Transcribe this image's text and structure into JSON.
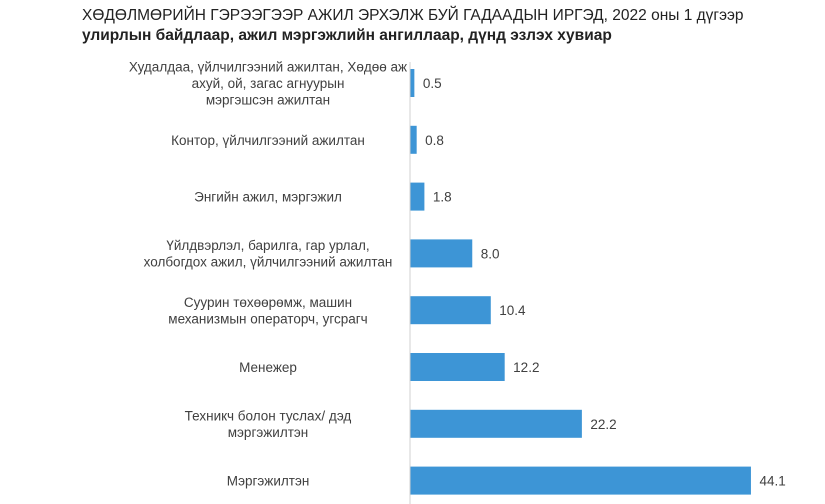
{
  "chart_data": {
    "type": "bar",
    "orientation": "horizontal",
    "title": "ХӨДӨЛМӨРИЙН ГЭРЭЭГЭЭР АЖИЛ ЭРХЭЛЖ БУЙ ГАДААДЫН ИРГЭД, 2022 оны 1 дүгээр",
    "subtitle": "улирлын байдлаар, ажил мэргэжлийн ангиллаар, дүнд эзлэх хувиар",
    "categories": [
      [
        "Худалдаа, үйлчилгээний ажилтан, Хөдөө аж",
        "ахуй, ой, загас агнуурын",
        "мэргэшсэн ажилтан"
      ],
      [
        "Контор, үйлчилгээний ажилтан"
      ],
      [
        "Энгийн ажил, мэргэжил"
      ],
      [
        "Үйлдвэрлэл, барилга, гар урлал,",
        "холбогдох ажил, үйлчилгээний ажилтан"
      ],
      [
        "Суурин төхөөрөмж, машин",
        "механизмын операторч, угсрагч"
      ],
      [
        "Менежер"
      ],
      [
        "Техникч болон туслах/ дэд",
        "мэргэжилтэн"
      ],
      [
        "Мэргэжилтэн"
      ]
    ],
    "values": [
      0.5,
      0.8,
      1.8,
      8.0,
      10.4,
      12.2,
      22.2,
      44.1
    ],
    "value_labels": [
      "0.5",
      "0.8",
      "1.8",
      "8.0",
      "10.4",
      "12.2",
      "22.2",
      "44.1"
    ],
    "xlim": [
      0,
      48
    ],
    "bar_color": "#3d95d6",
    "grid": false,
    "legend": "none"
  }
}
